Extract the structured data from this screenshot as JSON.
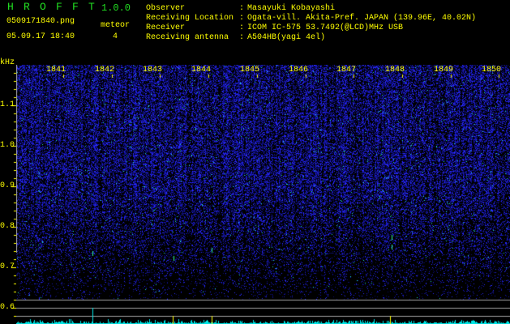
{
  "app": {
    "name_letters": [
      "H",
      "R",
      "O",
      "F",
      "F",
      "T"
    ],
    "version": "1.0.0"
  },
  "file": {
    "name": "0509171840.png",
    "datetime": "05.09.17 18:40"
  },
  "meteor": {
    "label": "meteor",
    "count": "4"
  },
  "info": [
    {
      "label": "Observer",
      "value": "Masayuki Kobayashi"
    },
    {
      "label": "Receiving Location",
      "value": "Ogata-vill. Akita-Pref. JAPAN (139.96E, 40.02N)"
    },
    {
      "label": "Receiver",
      "value": "ICOM IC-575 53.7492(@LCD)MHz USB"
    },
    {
      "label": "Receiving antenna",
      "value": "A504HB(yagi 4el)"
    }
  ],
  "separator": ":",
  "spectrogram": {
    "y_unit": "kHz",
    "y_ticks": [
      "1.1",
      "1.0",
      "0.9",
      "0.8",
      "0.7",
      "0.6"
    ],
    "x_ticks": [
      "1841",
      "1842",
      "1843",
      "1844",
      "1845",
      "1846",
      "1847",
      "1848",
      "1849",
      "1850"
    ],
    "colors": {
      "text": "#ffff00",
      "title": "#22e022",
      "noise": "#1a1aff",
      "histogram": "#00e5e5",
      "lines": "#a0a0a0"
    }
  }
}
